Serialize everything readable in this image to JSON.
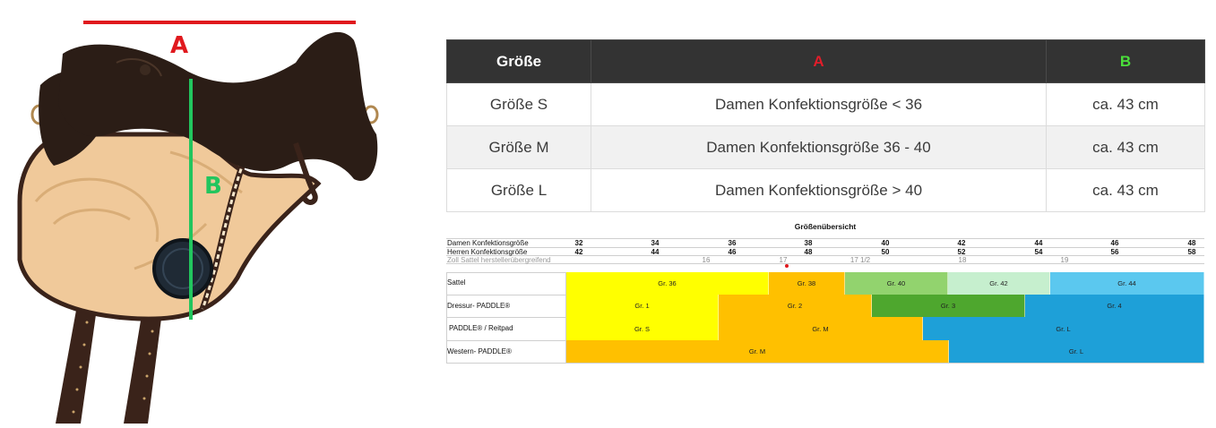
{
  "saddle": {
    "label_a": "A",
    "label_b": "B",
    "colors": {
      "suede": "#2b1d16",
      "leather": "#f0c99a",
      "strap": "#3a231a",
      "marker_a": "#e0191e",
      "marker_b": "#22c55e"
    }
  },
  "size_table": {
    "headers": [
      "Größe",
      "A",
      "B"
    ],
    "rows": [
      [
        "Größe S",
        "Damen Konfektionsgröße < 36",
        "ca. 43 cm"
      ],
      [
        "Größe M",
        "Damen Konfektionsgröße 36 - 40",
        "ca. 43 cm"
      ],
      [
        "Größe L",
        "Damen Konfektionsgröße > 40",
        "ca. 43 cm"
      ]
    ]
  },
  "overview": {
    "title": "Größenübersicht",
    "row_labels": {
      "damen": "Damen Konfektionsgröße",
      "herren": "Herren Konfektionsgröße",
      "zoll": "Zoll Sattel herstellerübergreifend"
    },
    "damen_sizes": [
      "32",
      "34",
      "36",
      "38",
      "40",
      "42",
      "44",
      "46",
      "48"
    ],
    "herren_sizes": [
      "42",
      "44",
      "46",
      "48",
      "50",
      "52",
      "54",
      "56",
      "58"
    ],
    "zoll_sizes": [
      "16",
      "17",
      "17 1/2",
      "18",
      "19"
    ],
    "products": [
      {
        "name": "Sattel",
        "bands": [
          {
            "label": "Gr. 36",
            "color": "#ffff00"
          },
          {
            "label": "Gr. 38",
            "color": "#ffc000"
          },
          {
            "label": "Gr. 40",
            "color": "#92d36e"
          },
          {
            "label": "Gr. 42",
            "color": "#c6efce"
          },
          {
            "label": "Gr. 44",
            "color": "#5bc8ef"
          }
        ]
      },
      {
        "name": "Dressur- PADDLE®",
        "bands": [
          {
            "label": "Gr. 1",
            "color": "#ffff00"
          },
          {
            "label": "Gr. 2",
            "color": "#ffc000"
          },
          {
            "label": "Gr. 3",
            "color": "#4ea72e"
          },
          {
            "label": "Gr. 4",
            "color": "#1ea0d8"
          }
        ]
      },
      {
        "name": "PADDLE® / Reitpad",
        "bands": [
          {
            "label": "Gr. S",
            "color": "#ffff00"
          },
          {
            "label": "Gr. M",
            "color": "#ffc000"
          },
          {
            "label": "Gr. L",
            "color": "#1ea0d8"
          }
        ]
      },
      {
        "name": "Western- PADDLE®",
        "bands": [
          {
            "label": "Gr. M",
            "color": "#ffc000"
          },
          {
            "label": "Gr. L",
            "color": "#1ea0d8"
          }
        ]
      }
    ]
  }
}
